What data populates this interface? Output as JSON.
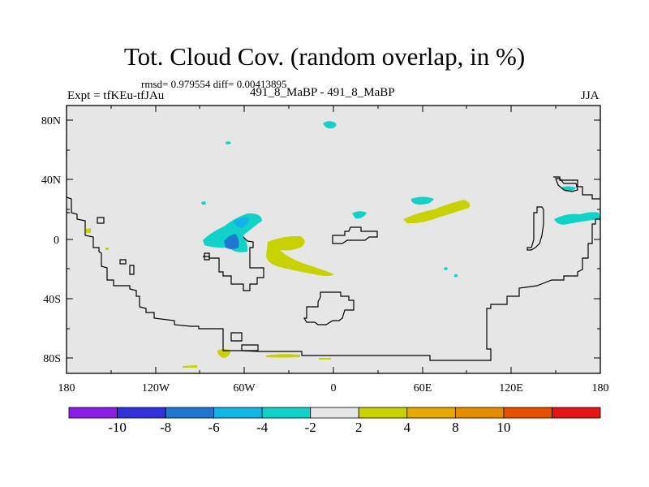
{
  "title": "Tot. Cloud Cov. (random overlap, in %)",
  "stats_text": "rmsd= 0.979554 diff= 0.00413895",
  "left_label": "Expt = tfKEu-tfJAu",
  "center_label": "491_8_MaBP - 491_8_MaBP",
  "right_label": "JJA",
  "lat_labels": [
    "80N",
    "40N",
    "0",
    "40S",
    "80S"
  ],
  "lon_labels": [
    "180",
    "120W",
    "60W",
    "0",
    "60E",
    "120E",
    "180"
  ],
  "colorbar": {
    "colors": [
      "#8a1ee6",
      "#3232dc",
      "#1e78d2",
      "#10b4e6",
      "#10d2c8",
      "#e6e6e6",
      "#c8d200",
      "#e6aa00",
      "#e68c00",
      "#e65000",
      "#e61414"
    ],
    "labels": [
      "-10",
      "-8",
      "-6",
      "-4",
      "-2",
      "2",
      "4",
      "8",
      "10"
    ]
  },
  "colors": {
    "background_field": "#e6e6e6",
    "coastline": "#000000"
  }
}
